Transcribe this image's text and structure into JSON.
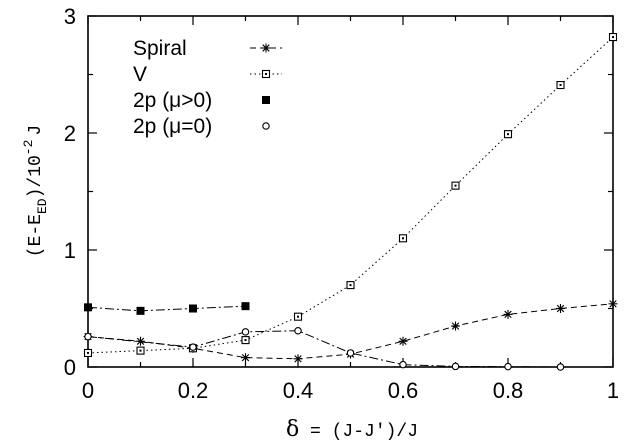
{
  "chart_data": {
    "type": "line",
    "title": "",
    "xlabel": {
      "greek": "δ",
      "rest": " = (J-J')/J"
    },
    "ylabel": {
      "main": "(E-E",
      "sub": "ED",
      "mid": ")/10",
      "sup": "-2",
      "end": "J"
    },
    "xlim": [
      0,
      1
    ],
    "ylim": [
      0,
      3
    ],
    "xticks": [
      "0",
      "0.2",
      "0.4",
      "0.6",
      "0.8",
      "1"
    ],
    "yticks": [
      "0",
      "1",
      "2",
      "3"
    ],
    "grid": false,
    "legend_position": "top-left",
    "series": [
      {
        "name": "Spiral",
        "marker": "star",
        "line": "dashed",
        "x": [
          0,
          0.1,
          0.2,
          0.3,
          0.4,
          0.5,
          0.6,
          0.7,
          0.8,
          0.9,
          1.0
        ],
        "y": [
          0.26,
          0.22,
          0.16,
          0.08,
          0.07,
          0.11,
          0.22,
          0.35,
          0.45,
          0.5,
          0.54
        ]
      },
      {
        "name": "V",
        "marker": "square-open",
        "line": "dotted",
        "x": [
          0,
          0.1,
          0.2,
          0.3,
          0.4,
          0.5,
          0.6,
          0.7,
          0.8,
          0.9,
          1.0
        ],
        "y": [
          0.12,
          0.14,
          0.16,
          0.23,
          0.43,
          0.7,
          1.1,
          1.55,
          1.99,
          2.41,
          2.82
        ]
      },
      {
        "name": "2p (μ>0)",
        "marker": "square-filled",
        "line": "dashdot",
        "x": [
          0,
          0.1,
          0.2,
          0.3
        ],
        "y": [
          0.51,
          0.48,
          0.5,
          0.52
        ]
      },
      {
        "name": "2p (μ=0)",
        "marker": "circle-open",
        "line": "dashdot",
        "x": [
          0,
          0.2,
          0.3,
          0.4,
          0.5,
          0.6,
          0.7,
          0.8,
          0.9
        ],
        "y": [
          0.26,
          0.17,
          0.3,
          0.31,
          0.12,
          0.02,
          0.005,
          0.003,
          0.0
        ]
      }
    ]
  }
}
